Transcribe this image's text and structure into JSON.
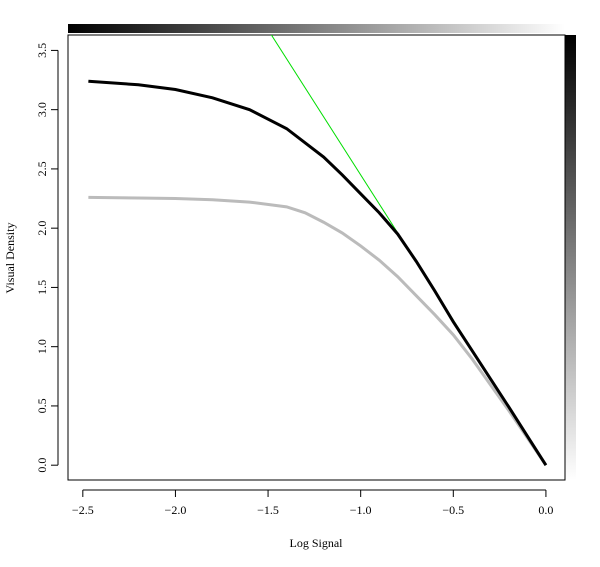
{
  "chart_data": {
    "type": "line",
    "xlabel": "Log Signal",
    "ylabel": "Visual Density",
    "xlim": [
      -2.58,
      0.103
    ],
    "ylim": [
      -0.125,
      3.63
    ],
    "xticks": [
      {
        "value": -2.5,
        "label": "−2.5"
      },
      {
        "value": -2.0,
        "label": "−2.0"
      },
      {
        "value": -1.5,
        "label": "−1.5"
      },
      {
        "value": -1.0,
        "label": "−1.0"
      },
      {
        "value": -0.5,
        "label": "−0.5"
      },
      {
        "value": 0,
        "label": "0.0"
      }
    ],
    "yticks": [
      {
        "value": 0,
        "label": "0.0"
      },
      0.5,
      {
        "value": 1,
        "label": "1.0"
      },
      1.5,
      {
        "value": 2,
        "label": "2.0"
      },
      2.5,
      {
        "value": 3,
        "label": "3.0"
      },
      3.5
    ],
    "series": [
      {
        "color": "#000000",
        "width": 3,
        "x": [
          -2.47,
          -2.2,
          -2.0,
          -1.8,
          -1.6,
          -1.4,
          -1.2,
          -1.1,
          -1.0,
          -0.9,
          -0.8,
          -0.7,
          -0.6,
          -0.5,
          -0.4,
          -0.3,
          -0.2,
          -0.1,
          0
        ],
        "values": [
          3.24,
          3.21,
          3.17,
          3.1,
          3.0,
          2.84,
          2.6,
          2.45,
          2.29,
          2.13,
          1.95,
          1.72,
          1.47,
          1.21,
          0.97,
          0.73,
          0.49,
          0.245,
          0
        ]
      },
      {
        "color": "#bbbbbb",
        "width": 3,
        "x": [
          -2.47,
          -2.2,
          -2.0,
          -1.8,
          -1.6,
          -1.4,
          -1.3,
          -1.2,
          -1.1,
          -1.0,
          -0.9,
          -0.8,
          -0.7,
          -0.6,
          -0.5,
          -0.4,
          -0.3,
          -0.2,
          -0.1,
          0
        ],
        "values": [
          2.26,
          2.255,
          2.25,
          2.24,
          2.22,
          2.18,
          2.13,
          2.05,
          1.96,
          1.85,
          1.73,
          1.59,
          1.43,
          1.27,
          1.1,
          0.9,
          0.68,
          0.46,
          0.23,
          0
        ]
      },
      {
        "color": "#00dd00",
        "width": 1,
        "x": [
          -1.49,
          0
        ],
        "values": [
          3.65,
          0
        ]
      }
    ]
  }
}
